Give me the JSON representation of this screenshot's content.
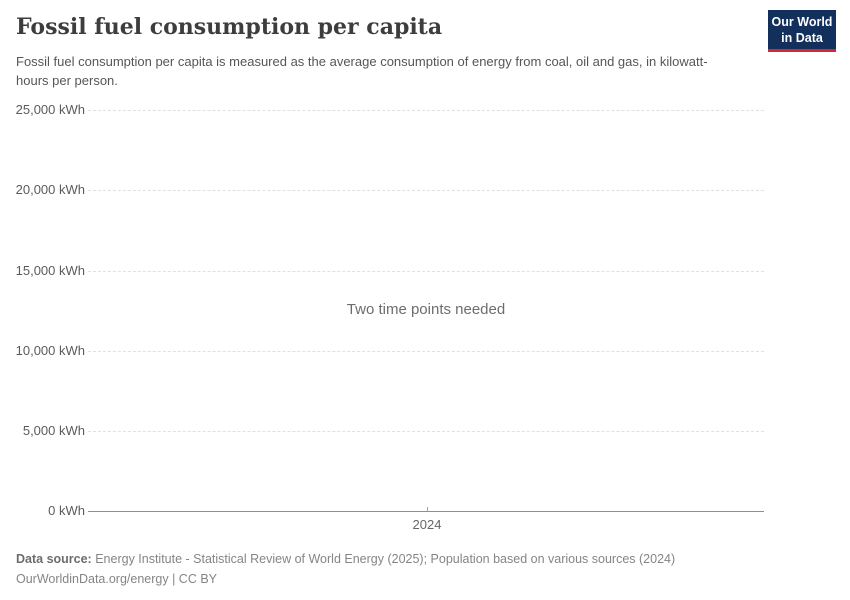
{
  "header": {
    "title": "Fossil fuel consumption per capita",
    "subtitle": "Fossil fuel consumption per capita is measured as the average consumption of energy from coal, oil and gas, in kilowatt-hours per person.",
    "logo": {
      "line1": "Our World",
      "line2": "in Data"
    }
  },
  "chart_data": {
    "type": "line",
    "title": "Fossil fuel consumption per capita",
    "series": [],
    "empty_state_message": "Two time points needed",
    "ylabel": "",
    "xlabel": "",
    "ylim": [
      0,
      25000
    ],
    "y_unit": "kWh",
    "grid": true,
    "legend": false,
    "yticks": [
      {
        "value": 25000,
        "label": "25,000 kWh"
      },
      {
        "value": 20000,
        "label": "20,000 kWh"
      },
      {
        "value": 15000,
        "label": "15,000 kWh"
      },
      {
        "value": 10000,
        "label": "10,000 kWh"
      },
      {
        "value": 5000,
        "label": "5,000 kWh"
      },
      {
        "value": 0,
        "label": "0 kWh"
      }
    ],
    "xticks": [
      {
        "value": 2024,
        "label": "2024"
      }
    ]
  },
  "footer": {
    "data_source_label": "Data source:",
    "data_source_text": " Energy Institute - Statistical Review of World Energy (2025); Population based on various sources (2024)",
    "attribution": "OurWorldinData.org/energy | CC BY"
  },
  "colors": {
    "logo_background": "#12305b",
    "logo_accent_red": "#cf2a33",
    "title_text": "#3d3d3d",
    "subtitle_text": "#565656",
    "tick_text": "#5b5b5b",
    "gridline": "#e0e0e0",
    "axis_line": "#8f8f8f",
    "footer_text": "#858585"
  }
}
